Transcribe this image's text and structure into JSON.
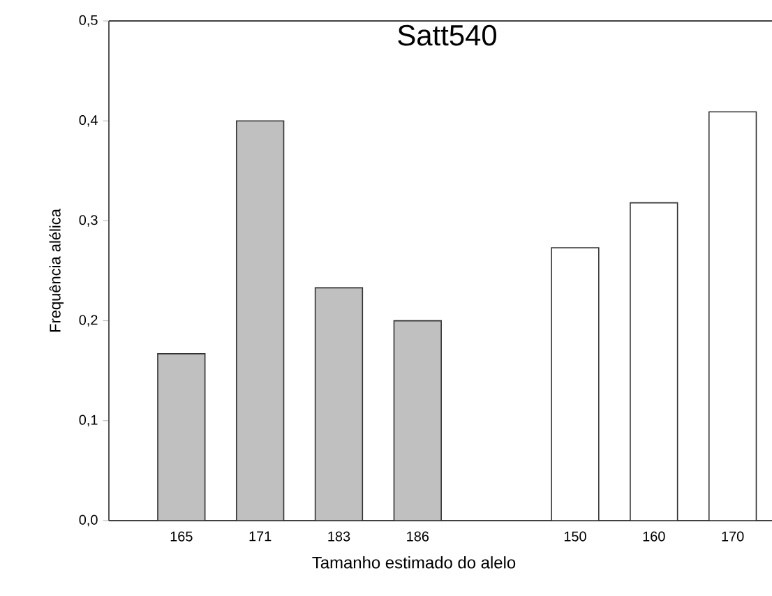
{
  "chart_data": {
    "type": "bar",
    "title": "Satt540",
    "xlabel": "Tamanho estimado do alelo",
    "ylabel": "Frequência alélica",
    "categories": [
      "165",
      "171",
      "183",
      "186",
      null,
      "150",
      "160",
      "170"
    ],
    "values": [
      0.167,
      0.4,
      0.233,
      0.2,
      null,
      0.273,
      0.318,
      0.409
    ],
    "colors": [
      "#c0c0c0",
      "#c0c0c0",
      "#c0c0c0",
      "#c0c0c0",
      null,
      "#ffffff",
      "#ffffff",
      "#ffffff"
    ],
    "ylim": [
      0,
      0.5
    ],
    "yticks": [
      {
        "value": 0,
        "label": "0,0"
      },
      {
        "value": 0.1,
        "label": "0,1"
      },
      {
        "value": 0.2,
        "label": "0,2"
      },
      {
        "value": 0.3,
        "label": "0,3"
      },
      {
        "value": 0.4,
        "label": "0,4"
      },
      {
        "value": 0.5,
        "label": "0,5"
      }
    ],
    "grid": false
  }
}
